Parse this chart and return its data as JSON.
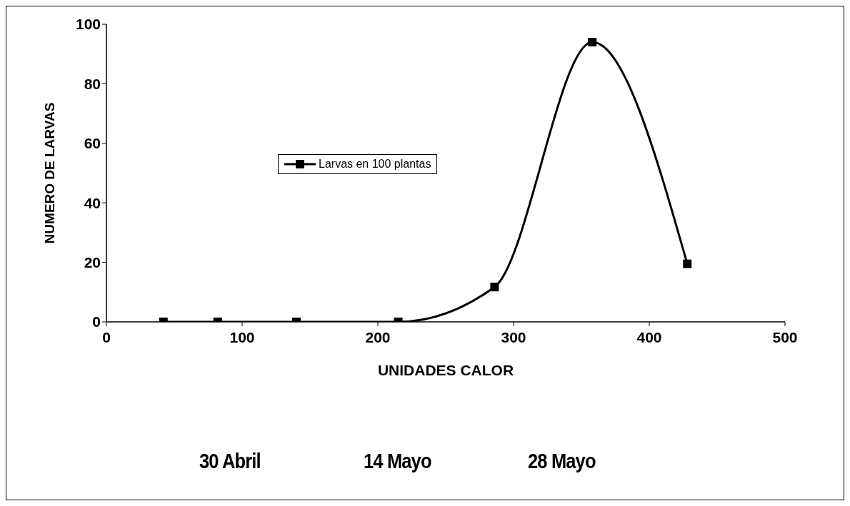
{
  "chart_data": {
    "type": "line",
    "xlabel": "UNIDADES CALOR",
    "ylabel": "NUMERO DE LARVAS",
    "x": [
      42,
      82,
      140,
      215,
      286,
      358,
      428
    ],
    "series": [
      {
        "name": "Larvas en 100 plantas",
        "color": "#000000",
        "values": [
          0,
          0,
          0,
          0,
          11.7,
          94,
          19.5
        ]
      }
    ],
    "xlim": [
      0,
      500
    ],
    "xticks": [
      0,
      100,
      200,
      300,
      400,
      500
    ],
    "ylim": [
      0,
      100
    ],
    "yticks": [
      0,
      20,
      40,
      60,
      80,
      100
    ],
    "grid": false,
    "legend": "left",
    "marker": "square",
    "line_style": "solid",
    "annotations": [
      "30 Abril",
      "14 Mayo",
      "28 Mayo"
    ]
  }
}
